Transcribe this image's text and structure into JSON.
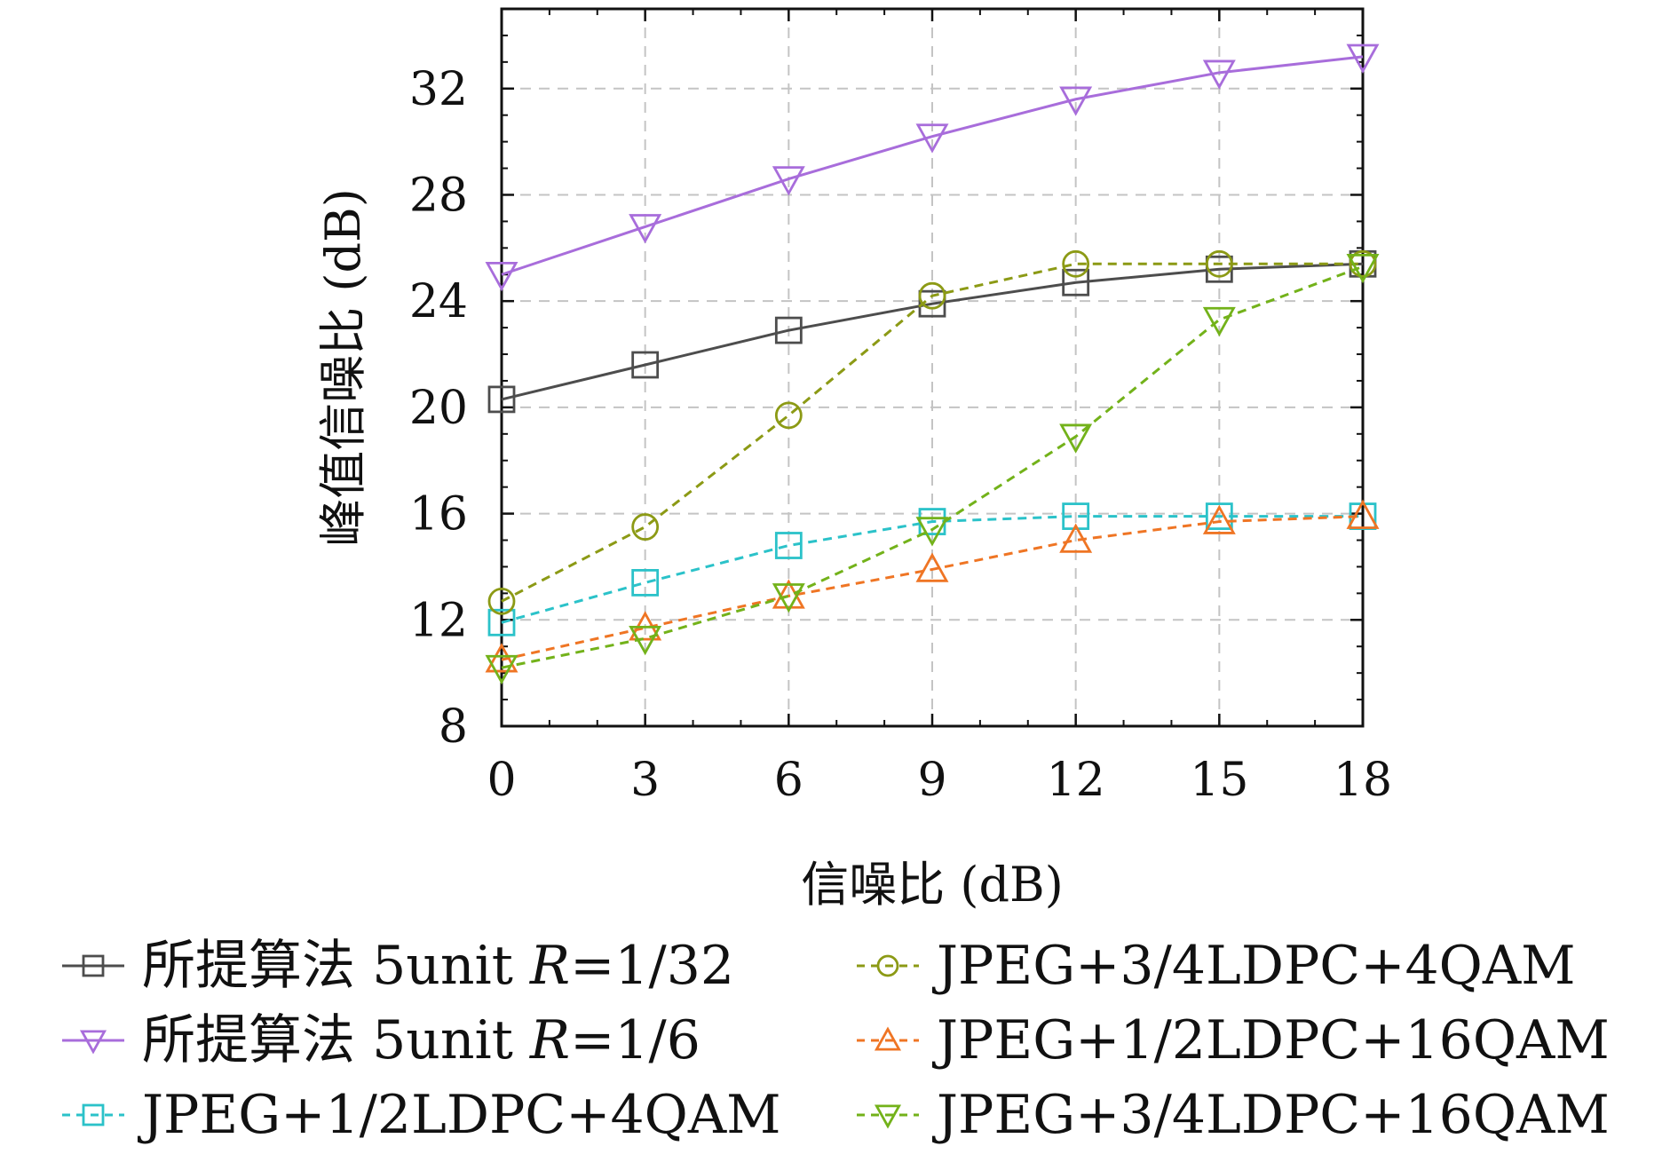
{
  "chart_data": {
    "type": "line",
    "xlabel": "信噪比 (dB)",
    "ylabel": "峰值信噪比 (dB)",
    "x": [
      0,
      3,
      6,
      9,
      12,
      15,
      18
    ],
    "xticks": [
      "0",
      "3",
      "6",
      "9",
      "12",
      "15",
      "18"
    ],
    "xlim": [
      0,
      18
    ],
    "ylim": [
      8,
      35
    ],
    "yticks": [
      "8",
      "12",
      "16",
      "20",
      "24",
      "28",
      "32"
    ],
    "yticks_values": [
      8,
      12,
      16,
      20,
      24,
      28,
      32
    ],
    "grid": true,
    "legend_position": "bottom",
    "series": [
      {
        "name": "所提算法 5unit R=1/32",
        "legend_prefix": "所提算法 5unit ",
        "legend_italic": "R",
        "legend_suffix": "=1/32",
        "color": "#4d4d4d",
        "marker": "square",
        "dashed": false,
        "values": [
          20.3,
          21.6,
          22.9,
          23.9,
          24.7,
          25.2,
          25.4
        ]
      },
      {
        "name": "所提算法 5unit R=1/6",
        "legend_prefix": "所提算法 5unit ",
        "legend_italic": "R",
        "legend_suffix": "=1/6",
        "color": "#a86ddb",
        "marker": "triangle-down",
        "dashed": false,
        "values": [
          25.0,
          26.8,
          28.6,
          30.2,
          31.6,
          32.6,
          33.2
        ]
      },
      {
        "name": "JPEG+1/2LDPC+4QAM",
        "legend_prefix": "JPEG+1/2LDPC+4QAM",
        "legend_italic": "",
        "legend_suffix": "",
        "color": "#2bc2c9",
        "marker": "square",
        "dashed": true,
        "values": [
          11.9,
          13.4,
          14.8,
          15.7,
          15.9,
          15.9,
          15.9
        ]
      },
      {
        "name": "JPEG+3/4LDPC+4QAM",
        "legend_prefix": "JPEG+3/4LDPC+4QAM",
        "legend_italic": "",
        "legend_suffix": "",
        "color": "#8c9a15",
        "marker": "circle",
        "dashed": true,
        "values": [
          12.7,
          15.5,
          19.7,
          24.2,
          25.4,
          25.4,
          25.4
        ]
      },
      {
        "name": "JPEG+1/2LDPC+16QAM",
        "legend_prefix": "JPEG+1/2LDPC+16QAM",
        "legend_italic": "",
        "legend_suffix": "",
        "color": "#ef7524",
        "marker": "triangle-up",
        "dashed": true,
        "values": [
          10.5,
          11.7,
          12.9,
          13.9,
          15.0,
          15.7,
          15.9
        ]
      },
      {
        "name": "JPEG+3/4LDPC+16QAM",
        "legend_prefix": "JPEG+3/4LDPC+16QAM",
        "legend_italic": "",
        "legend_suffix": "",
        "color": "#73b21a",
        "marker": "triangle-down",
        "dashed": true,
        "values": [
          10.2,
          11.3,
          12.9,
          15.4,
          18.9,
          23.3,
          25.3
        ]
      }
    ]
  }
}
